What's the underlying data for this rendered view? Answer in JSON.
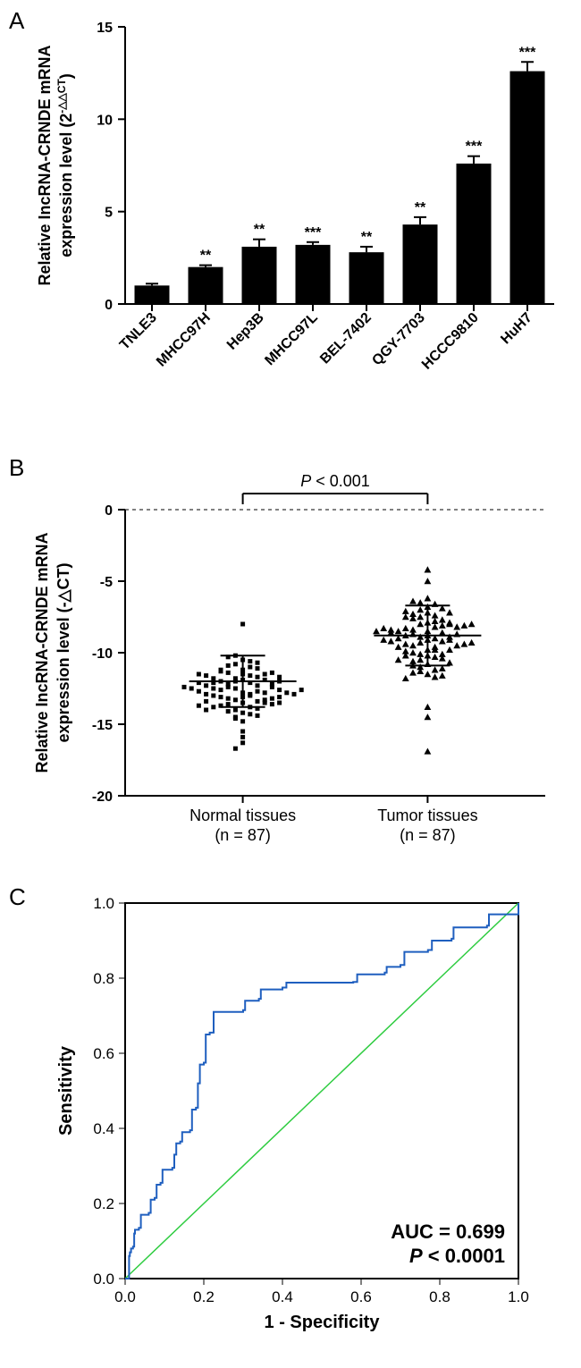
{
  "panelA": {
    "label": "A",
    "type": "bar",
    "y_title_line1": "Relative IncRNA-CRNDE mRNA",
    "y_title_line2_prefix": "expression level (2",
    "y_title_line2_exp": "-△△CT",
    "y_title_line2_suffix": ")",
    "categories": [
      "TNLE3",
      "MHCC97H",
      "Hep3B",
      "MHCC97L",
      "BEL-7402",
      "QGY-7703",
      "HCCC9810",
      "HuH7"
    ],
    "values": [
      1.0,
      2.0,
      3.1,
      3.2,
      2.8,
      4.3,
      7.6,
      12.6
    ],
    "errors": [
      0.1,
      0.1,
      0.4,
      0.15,
      0.3,
      0.4,
      0.4,
      0.5
    ],
    "significance": [
      "",
      "**",
      "**",
      "***",
      "**",
      "**",
      "***",
      "***"
    ],
    "bar_color": "#000000",
    "ylim": [
      0,
      15
    ],
    "yticks": [
      0,
      5,
      10,
      15
    ],
    "bar_width": 0.65,
    "label_fontsize": 16,
    "title_fontsize": 18
  },
  "panelB": {
    "label": "B",
    "type": "scatter",
    "y_title_line1": "Relative IncRNA-CRNDE mRNA",
    "y_title_line2_prefix": "expression level (",
    "y_title_line2_mid": "-△CT",
    "y_title_line2_suffix": ")",
    "group1_label_line1": "Normal tissues",
    "group1_label_line2": "(n = 87)",
    "group2_label_line1": "Tumor tissues",
    "group2_label_line2": "(n = 87)",
    "pvalue_text": "P < 0.001",
    "ylim": [
      -20,
      0
    ],
    "yticks": [
      -20,
      -15,
      -10,
      -5,
      0
    ],
    "group1_mean": -12.0,
    "group1_sd": 1.8,
    "group2_mean": -8.8,
    "group2_sd": 2.1,
    "marker_size": 5,
    "normal_points": [
      -14.2,
      -13.5,
      -12.8,
      -11.9,
      -13.1,
      -12.0,
      -11.5,
      -14.0,
      -12.5,
      -13.8,
      -11.2,
      -12.9,
      -10.8,
      -13.3,
      -12.4,
      -11.8,
      -14.5,
      -12.1,
      -13.0,
      -11.6,
      -12.7,
      -13.6,
      -10.5,
      -12.2,
      -11.4,
      -13.9,
      -12.6,
      -14.8,
      -11.0,
      -12.3,
      -13.2,
      -11.7,
      -12.0,
      -13.4,
      -10.2,
      -11.3,
      -12.8,
      -14.3,
      -13.7,
      -12.5,
      -11.9,
      -13.1,
      -12.4,
      -10.9,
      -13.5,
      -12.1,
      -11.5,
      -14.1,
      -12.9,
      -13.3,
      -11.1,
      -12.6,
      -13.8,
      -10.6,
      -12.2,
      -11.8,
      -14.6,
      -13.0,
      -12.7,
      -11.4,
      -13.2,
      -12.3,
      -15.5,
      -11.6,
      -12.8,
      -13.6,
      -10.3,
      -12.0,
      -14.4,
      -11.2,
      -12.5,
      -13.4,
      -11.7,
      -16.3,
      -12.9,
      -13.1,
      -10.7,
      -12.4,
      -8.0,
      -14.0,
      -13.5,
      -12.1,
      -15.9,
      -12.6,
      -13.7,
      -16.7,
      -11.5
    ],
    "tumor_points": [
      -9.8,
      -8.5,
      -10.2,
      -7.9,
      -9.1,
      -8.0,
      -11.5,
      -7.5,
      -8.8,
      -10.5,
      -9.3,
      -6.8,
      -8.2,
      -10.8,
      -9.6,
      -7.2,
      -8.9,
      -11.0,
      -9.0,
      -7.8,
      -10.1,
      -8.4,
      -9.5,
      -6.5,
      -8.7,
      -11.3,
      -9.2,
      -7.6,
      -10.3,
      -8.1,
      -13.8,
      -7.0,
      -8.6,
      -10.6,
      -9.4,
      -7.4,
      -8.3,
      -11.7,
      -9.8,
      -6.2,
      -8.0,
      -10.0,
      -9.1,
      -7.7,
      -8.5,
      -11.2,
      -5.0,
      -7.3,
      -10.4,
      -8.8,
      -9.6,
      -6.9,
      -8.2,
      -10.9,
      -16.9,
      -7.1,
      -8.9,
      -11.4,
      -9.0,
      -7.5,
      -10.2,
      -8.4,
      -9.5,
      -6.6,
      -8.7,
      -11.6,
      -9.2,
      -4.2,
      -10.1,
      -8.1,
      -9.9,
      -7.2,
      -8.6,
      -10.7,
      -9.4,
      -14.5,
      -8.3,
      -11.1,
      -9.8,
      -6.4,
      -8.0,
      -10.5,
      -9.1,
      -7.9,
      -8.5,
      -11.8,
      -9.3
    ]
  },
  "panelC": {
    "label": "C",
    "type": "roc",
    "x_title": "1 - Specificity",
    "y_title": "Sensitivity",
    "xlim": [
      0,
      1
    ],
    "ylim": [
      0,
      1
    ],
    "xticks": [
      0.0,
      0.2,
      0.4,
      0.6,
      0.8,
      1.0
    ],
    "yticks": [
      0.0,
      0.2,
      0.4,
      0.6,
      0.8,
      1.0
    ],
    "auc_label": "AUC = 0.699",
    "p_label": "P  <  0.0001",
    "p_label_italic_part": "P",
    "roc_color": "#1f5fbf",
    "diag_color": "#2ecc40",
    "label_fontsize": 18,
    "roc_points": [
      [
        0.0,
        0.0
      ],
      [
        0.01,
        0.06
      ],
      [
        0.012,
        0.07
      ],
      [
        0.015,
        0.08
      ],
      [
        0.02,
        0.085
      ],
      [
        0.023,
        0.12
      ],
      [
        0.025,
        0.13
      ],
      [
        0.035,
        0.135
      ],
      [
        0.04,
        0.17
      ],
      [
        0.06,
        0.175
      ],
      [
        0.065,
        0.21
      ],
      [
        0.075,
        0.215
      ],
      [
        0.08,
        0.25
      ],
      [
        0.09,
        0.255
      ],
      [
        0.095,
        0.29
      ],
      [
        0.12,
        0.295
      ],
      [
        0.125,
        0.33
      ],
      [
        0.13,
        0.36
      ],
      [
        0.14,
        0.365
      ],
      [
        0.145,
        0.39
      ],
      [
        0.165,
        0.395
      ],
      [
        0.17,
        0.45
      ],
      [
        0.18,
        0.455
      ],
      [
        0.185,
        0.52
      ],
      [
        0.19,
        0.57
      ],
      [
        0.2,
        0.575
      ],
      [
        0.205,
        0.65
      ],
      [
        0.215,
        0.655
      ],
      [
        0.225,
        0.71
      ],
      [
        0.3,
        0.715
      ],
      [
        0.305,
        0.74
      ],
      [
        0.34,
        0.745
      ],
      [
        0.345,
        0.77
      ],
      [
        0.4,
        0.775
      ],
      [
        0.41,
        0.788
      ],
      [
        0.58,
        0.79
      ],
      [
        0.59,
        0.81
      ],
      [
        0.66,
        0.815
      ],
      [
        0.665,
        0.83
      ],
      [
        0.7,
        0.835
      ],
      [
        0.71,
        0.87
      ],
      [
        0.77,
        0.875
      ],
      [
        0.78,
        0.9
      ],
      [
        0.83,
        0.905
      ],
      [
        0.835,
        0.935
      ],
      [
        0.92,
        0.94
      ],
      [
        0.925,
        0.97
      ],
      [
        1.0,
        1.0
      ]
    ]
  }
}
